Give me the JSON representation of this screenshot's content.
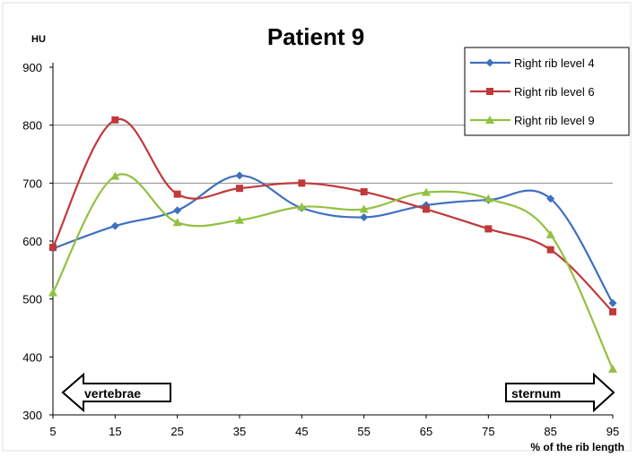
{
  "chart_data": {
    "type": "line",
    "title": "Patient 9",
    "ylabel": "HU",
    "xlabel": "% of the rib length",
    "x": [
      5,
      15,
      25,
      35,
      45,
      55,
      65,
      75,
      85,
      95
    ],
    "ylim": [
      300,
      900
    ],
    "yticks": [
      300,
      400,
      500,
      600,
      700,
      800,
      900
    ],
    "gridlines": [
      700,
      800
    ],
    "legend_position": "top-right",
    "series": [
      {
        "name": "Right rib level 4",
        "color": "#3f6fc0",
        "marker": "diamond",
        "values": [
          587,
          626,
          653,
          713,
          657,
          641,
          662,
          671,
          673,
          493
        ]
      },
      {
        "name": "Right rib level 6",
        "color": "#c0393b",
        "marker": "square",
        "values": [
          589,
          809,
          681,
          691,
          700,
          685,
          655,
          621,
          585,
          478
        ]
      },
      {
        "name": "Right rib level 9",
        "color": "#92c141",
        "marker": "triangle",
        "values": [
          511,
          712,
          632,
          636,
          659,
          655,
          684,
          673,
          611,
          379
        ]
      }
    ],
    "annotations": [
      {
        "text": "vertebrae",
        "direction": "left"
      },
      {
        "text": "sternum",
        "direction": "right"
      }
    ]
  }
}
